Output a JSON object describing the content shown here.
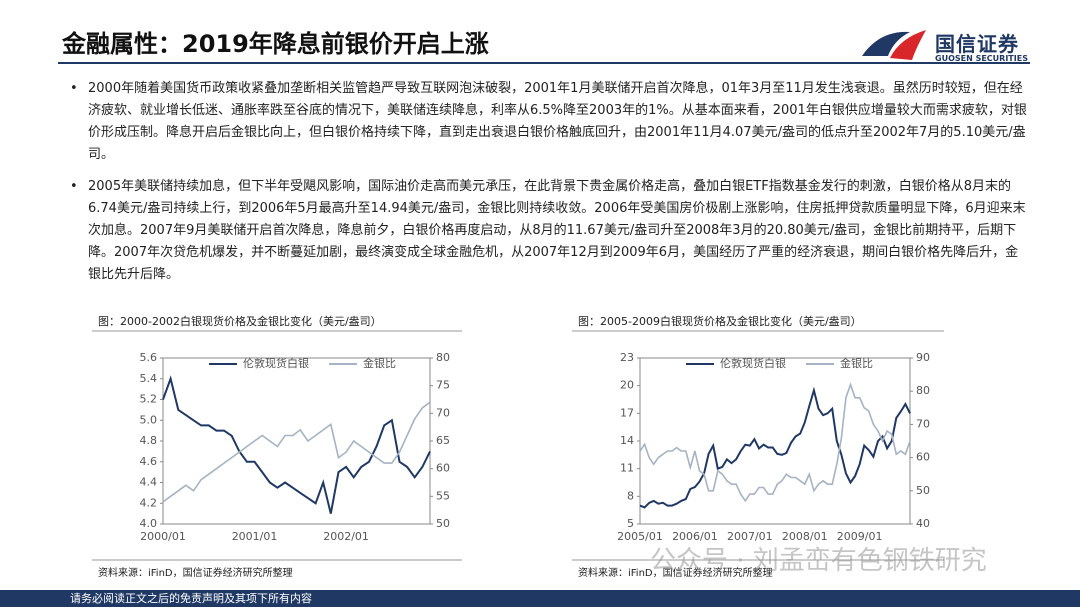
{
  "header": {
    "title": "金融属性：2019年降息前银价开启上涨",
    "logo_name": "国信证券",
    "logo_en": "GUOSEN SECURITIES"
  },
  "bullets": [
    "2000年随着美国货币政策收紧叠加垄断相关监管趋严导致互联网泡沫破裂，2001年1月美联储开启首次降息，01年3月至11月发生浅衰退。虽然历时较短，但在经济疲软、就业增长低迷、通胀率跌至谷底的情况下，美联储连续降息，利率从6.5%降至2003年的1%。从基本面来看，2001年白银供应增量较大而需求疲软，对银价形成压制。降息开启后金银比向上，但白银价格持续下降，直到走出衰退白银价格触底回升，由2001年11月4.07美元/盎司的低点升至2002年7月的5.10美元/盎司。",
    "2005年美联储持续加息，但下半年受飓风影响，国际油价走高而美元承压，在此背景下贵金属价格走高，叠加白银ETF指数基金发行的刺激，白银价格从8月末的6.74美元/盎司持续上行，到2006年5月最高升至14.94美元/盎司，金银比则持续收敛。2006年受美国房价极剧上涨影响，住房抵押贷款质量明显下降，6月迎来末次加息。2007年9月美联储开启首次降息，降息前夕，白银价格再度启动，从8月的11.67美元/盎司升至2008年3月的20.80美元/盎司，金银比前期持平，后期下降。2007年次贷危机爆发，并不断蔓延加剧，最终演变成全球金融危机，从2007年12月到2009年6月，美国经历了严重的经济衰退，期间白银价格先降后升，金银比先升后降。"
  ],
  "chart_data": [
    {
      "type": "line",
      "title": "图：2000-2002白银现货价格及金银比变化（美元/盎司）",
      "source": "资料来源：iFinD，国信证券经济研究所整理",
      "categories": [
        "2000/01",
        null,
        null,
        null,
        null,
        null,
        null,
        null,
        null,
        null,
        null,
        null,
        "2001/01",
        null,
        null,
        null,
        null,
        null,
        null,
        null,
        null,
        null,
        null,
        null,
        "2002/01",
        null,
        null,
        null,
        null,
        null,
        null,
        null,
        null,
        null,
        null,
        null
      ],
      "series": [
        {
          "name": "伦敦现货白银",
          "color": "#1f3864",
          "values": [
            5.2,
            5.4,
            5.1,
            5.05,
            5.0,
            4.95,
            4.95,
            4.9,
            4.9,
            4.85,
            4.7,
            4.6,
            4.6,
            4.5,
            4.4,
            4.35,
            4.4,
            4.35,
            4.3,
            4.25,
            4.2,
            4.4,
            4.1,
            4.5,
            4.55,
            4.45,
            4.55,
            4.6,
            4.75,
            4.95,
            5.0,
            4.6,
            4.55,
            4.45,
            4.55,
            4.7
          ]
        },
        {
          "name": "金银比",
          "color": "#a6b3c4",
          "axis": "y2",
          "values": [
            54,
            55,
            56,
            57,
            56,
            58,
            59,
            60,
            61,
            62,
            63,
            64,
            65,
            66,
            65,
            64,
            66,
            66,
            67,
            65,
            66,
            67,
            68,
            62,
            63,
            65,
            64,
            63,
            62,
            61,
            61,
            63,
            66,
            69,
            71,
            72
          ]
        }
      ],
      "ylim": [
        4,
        5.6
      ],
      "yticks": [
        {
          "value": 4,
          "label": "4.0"
        },
        4.2,
        4.4,
        4.6,
        4.8,
        {
          "value": 5,
          "label": "5.0"
        },
        5.2,
        5.4,
        5.6
      ],
      "y2lim": [
        50,
        80
      ],
      "y2ticks": [
        50,
        55,
        60,
        65,
        70,
        75,
        80
      ]
    },
    {
      "type": "line",
      "title": "图：2005-2009白银现货价格及金银比变化（美元/盎司）",
      "source": "资料来源：iFinD，国信证券经济研究所整理",
      "categories": [
        "2005/01",
        null,
        null,
        null,
        null,
        null,
        null,
        null,
        null,
        null,
        null,
        null,
        "2006/01",
        null,
        null,
        null,
        null,
        null,
        null,
        null,
        null,
        null,
        null,
        null,
        "2007/01",
        null,
        null,
        null,
        null,
        null,
        null,
        null,
        null,
        null,
        null,
        null,
        "2008/01",
        null,
        null,
        null,
        null,
        null,
        null,
        null,
        null,
        null,
        null,
        null,
        "2009/01",
        null,
        null,
        null,
        null,
        null,
        null,
        null,
        null,
        null,
        null,
        null
      ],
      "series": [
        {
          "name": "伦敦现货白银",
          "color": "#1f3864",
          "values": [
            7,
            6.8,
            7.3,
            7.5,
            7.2,
            7.3,
            7,
            7,
            7.2,
            7.5,
            7.7,
            8.8,
            9,
            9.6,
            10.5,
            12.6,
            13.5,
            11,
            11.2,
            12,
            11.6,
            12,
            12.9,
            13.6,
            13.5,
            14.2,
            13.2,
            13.6,
            13.3,
            13.3,
            12.6,
            12.5,
            12.7,
            13.8,
            14.5,
            14.8,
            16,
            17.8,
            19.5,
            17.5,
            16.8,
            17,
            17.5,
            14,
            12.5,
            10.5,
            9.5,
            10.2,
            11.5,
            13.5,
            13,
            12.3,
            14,
            14.5,
            13.2,
            14,
            16.5,
            17.2,
            18,
            17
          ]
        },
        {
          "name": "金银比",
          "color": "#a6b3c4",
          "axis": "y2",
          "values": [
            62,
            64,
            60,
            58,
            60,
            61,
            62,
            62,
            63,
            62,
            62,
            57,
            62,
            56,
            55,
            50,
            50,
            56,
            55,
            53,
            52,
            52,
            49,
            47,
            49,
            49,
            51,
            51,
            49,
            49,
            52,
            53,
            55,
            54,
            54,
            53,
            52,
            55,
            50,
            52,
            53,
            52,
            52,
            58,
            66,
            78,
            82,
            78,
            78,
            75,
            74,
            70,
            68,
            65,
            68,
            67,
            61,
            62,
            61,
            65
          ]
        }
      ],
      "ylim": [
        5,
        23
      ],
      "yticks": [
        5,
        8,
        11,
        14,
        17,
        20,
        23
      ],
      "y2lim": [
        40,
        90
      ],
      "y2ticks": [
        40,
        50,
        60,
        70,
        80,
        90
      ]
    }
  ],
  "watermark": "公众号 · 刘孟峦有色钢铁研究",
  "footer": "请务必阅读正文之后的免责声明及其项下所有内容"
}
